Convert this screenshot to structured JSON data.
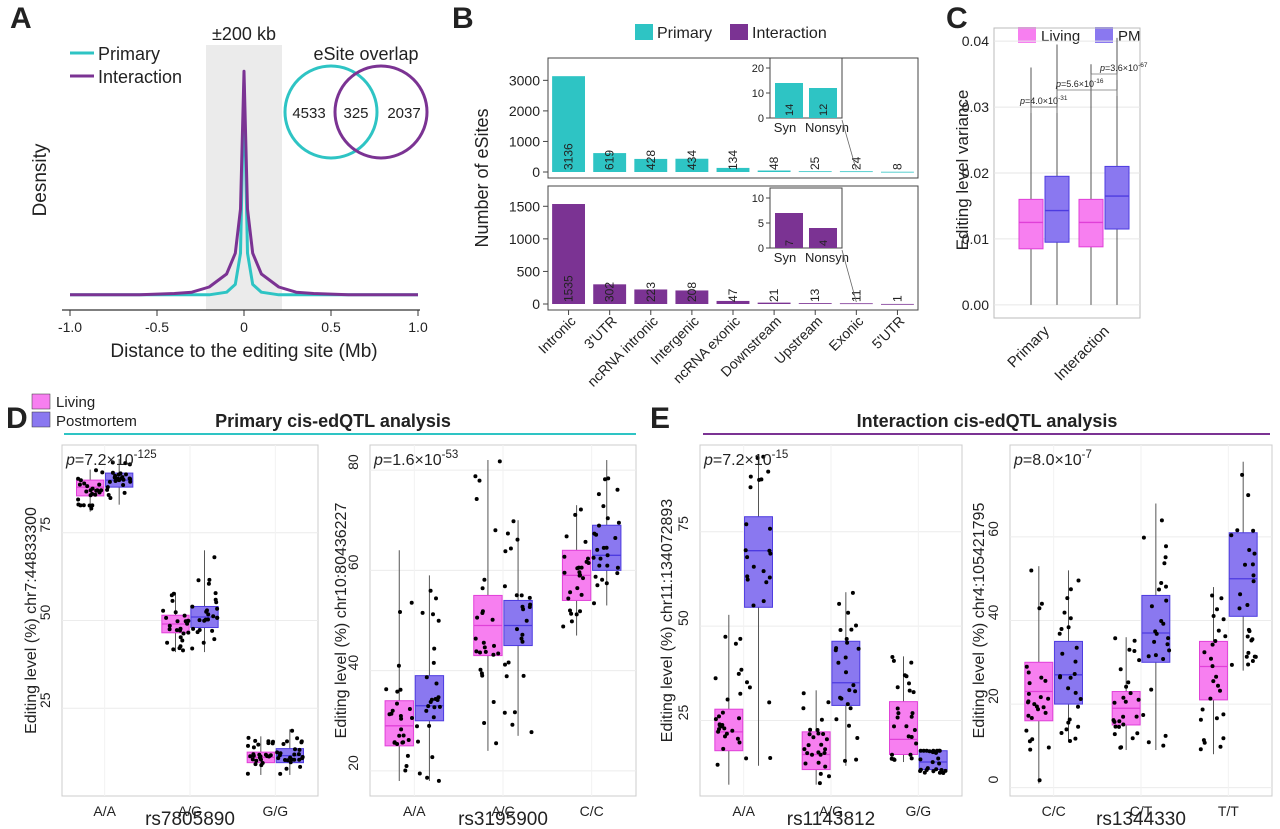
{
  "colors": {
    "primary": "#2ec4c4",
    "interaction": "#7b3393",
    "living": "#f77ff0",
    "postmortem": "#8a78f0",
    "living_dark": "#e040d8",
    "postmortem_dark": "#4d3be0",
    "window": "#ebebeb"
  },
  "panels": {
    "A": "A",
    "B": "B",
    "C": "C",
    "D": "D",
    "E": "E"
  },
  "panelA": {
    "legend": [
      "Primary",
      "Interaction"
    ],
    "window_label": "±200 kb",
    "overlap_title": "eSite overlap",
    "venn": {
      "left": "4533",
      "middle": "325",
      "right": "2037"
    }
  },
  "panelD": {
    "legend": [
      "Living",
      "Postmortem"
    ],
    "title": "Primary cis-edQTL analysis"
  },
  "panelE": {
    "title": "Interaction cis-edQTL analysis"
  },
  "chart_data": [
    {
      "panel": "A",
      "type": "line",
      "xlabel": "Distance to the editing site (Mb)",
      "ylabel": "Desnsity",
      "xlim": [
        -1.0,
        1.0
      ],
      "xticks": [
        "-1.0",
        "-0.5",
        "0",
        "0.5",
        "1.0"
      ],
      "grid": false,
      "legend": "top-left",
      "window": [
        -0.2,
        0.2
      ],
      "series": [
        {
          "name": "Primary",
          "x": [
            -1.0,
            -0.8,
            -0.6,
            -0.4,
            -0.3,
            -0.2,
            -0.1,
            -0.05,
            -0.02,
            0,
            0.02,
            0.05,
            0.1,
            0.2,
            0.3,
            0.4,
            0.6,
            0.8,
            1.0
          ],
          "y": [
            0.02,
            0.02,
            0.02,
            0.02,
            0.02,
            0.02,
            0.03,
            0.06,
            0.18,
            0.84,
            0.18,
            0.06,
            0.03,
            0.02,
            0.02,
            0.02,
            0.02,
            0.02,
            0.02
          ]
        },
        {
          "name": "Interaction",
          "x": [
            -1.0,
            -0.8,
            -0.6,
            -0.4,
            -0.3,
            -0.2,
            -0.1,
            -0.05,
            -0.02,
            0,
            0.02,
            0.05,
            0.1,
            0.2,
            0.3,
            0.4,
            0.6,
            0.8,
            1.0
          ],
          "y": [
            0.02,
            0.02,
            0.02,
            0.025,
            0.03,
            0.05,
            0.1,
            0.18,
            0.35,
            0.88,
            0.35,
            0.18,
            0.1,
            0.05,
            0.03,
            0.025,
            0.02,
            0.02,
            0.02
          ]
        }
      ]
    },
    {
      "panel": "B",
      "type": "bar",
      "ylabel": "Number of eSites",
      "legend": "top",
      "categories": [
        "Intronic",
        "3'UTR",
        "ncRNA intronic",
        "Intergenic",
        "ncRNA exonic",
        "Downstream",
        "Upstream",
        "Exonic",
        "5'UTR"
      ],
      "series": [
        {
          "name": "Primary",
          "values": [
            3136,
            619,
            428,
            434,
            134,
            48,
            25,
            24,
            8
          ],
          "ylim": [
            0,
            3600
          ],
          "yticks": [
            0,
            1000,
            2000,
            3000
          ],
          "inset": {
            "categories": [
              "Syn",
              "Nonsyn"
            ],
            "values": [
              14,
              12
            ],
            "ylim": [
              0,
              24
            ],
            "yticks": [
              0,
              10,
              20
            ]
          }
        },
        {
          "name": "Interaction",
          "values": [
            1535,
            302,
            223,
            208,
            47,
            21,
            13,
            11,
            1
          ],
          "ylim": [
            0,
            1750
          ],
          "yticks": [
            0,
            500,
            1000,
            1500
          ],
          "inset": {
            "categories": [
              "Syn",
              "Nonsyn"
            ],
            "values": [
              7,
              4
            ],
            "ylim": [
              0,
              12
            ],
            "yticks": [
              0,
              5,
              10
            ]
          }
        }
      ]
    },
    {
      "panel": "C",
      "type": "box",
      "ylabel": "Editing level variance",
      "legend": "top-left",
      "categories": [
        "Primary",
        "Interaction"
      ],
      "ylim": [
        -0.002,
        0.042
      ],
      "yticks": [
        "0.00",
        "0.01",
        "0.02",
        "0.03",
        "0.04"
      ],
      "series": [
        {
          "name": "Living",
          "boxes": [
            [
              0,
              0.0085,
              0.0125,
              0.016,
              0.036
            ],
            [
              0,
              0.0088,
              0.0125,
              0.016,
              0.0365
            ]
          ]
        },
        {
          "name": "PM",
          "boxes": [
            [
              0,
              0.0095,
              0.0143,
              0.0195,
              0.0395
            ],
            [
              0,
              0.0115,
              0.0165,
              0.021,
              0.0405
            ]
          ]
        }
      ],
      "pvalues": [
        {
          "base": "p=4.0×10",
          "exp": "-31"
        },
        {
          "base": "p=5.6×10",
          "exp": "-16"
        },
        {
          "base": "p=3.6×10",
          "exp": "-67"
        }
      ]
    },
    {
      "panel": "D1",
      "type": "box",
      "xlabel": "rs7805890",
      "ylabel": "Editing level (%) chr7:44833300",
      "categories": [
        "A/A",
        "A/G",
        "G/G"
      ],
      "ylim": [
        0,
        100
      ],
      "yticks": [
        "25",
        "50",
        "75"
      ],
      "p_base": "p=7.2×10",
      "p_exp": "-125",
      "boxes": [
        [
          [
            81,
            85.5,
            88,
            90,
            93
          ],
          [
            83,
            88,
            90,
            92,
            96
          ]
        ],
        [
          [
            41,
            46.5,
            49,
            51.5,
            58
          ],
          [
            41,
            48,
            51,
            54,
            70
          ]
        ],
        [
          [
            6,
            9.5,
            11,
            12.5,
            17
          ],
          [
            6,
            9.5,
            11.5,
            13.5,
            19
          ]
        ]
      ]
    },
    {
      "panel": "D2",
      "type": "box",
      "xlabel": "rs3195900",
      "ylabel": "Editing level (%) chr10:80436227",
      "categories": [
        "A/A",
        "A/C",
        "C/C"
      ],
      "ylim": [
        15,
        85
      ],
      "yticks": [
        "20",
        "40",
        "60",
        "80"
      ],
      "p_base": "p=1.6×10",
      "p_exp": "-53",
      "boxes": [
        [
          [
            18,
            25,
            29,
            34,
            64
          ],
          [
            18,
            30,
            33,
            39,
            59
          ]
        ],
        [
          [
            24,
            43,
            49,
            55,
            82
          ],
          [
            27,
            45,
            49,
            54,
            70
          ]
        ],
        [
          [
            47,
            54,
            59,
            64,
            73
          ],
          [
            53,
            60,
            63,
            69,
            82
          ]
        ]
      ]
    },
    {
      "panel": "E1",
      "type": "box",
      "xlabel": "rs1143812",
      "ylabel": "Editing level (%) chr11:134072893",
      "categories": [
        "A/A",
        "A/G",
        "G/G"
      ],
      "ylim": [
        5,
        98
      ],
      "yticks": [
        "25",
        "50",
        "75"
      ],
      "p_base": "p=7.2×10",
      "p_exp": "-15",
      "boxes": [
        [
          [
            8,
            17,
            22,
            28,
            53
          ],
          [
            13,
            55,
            70,
            79,
            95
          ]
        ],
        [
          [
            8,
            12,
            16,
            22,
            33
          ],
          [
            13,
            29,
            35,
            46,
            59
          ]
        ],
        [
          [
            14,
            16,
            20,
            30,
            42
          ],
          [
            11,
            12,
            14,
            17,
            17
          ]
        ]
      ]
    },
    {
      "panel": "E2",
      "type": "box",
      "xlabel": "rs1344330",
      "ylabel": "Editing level (%) chr4:105421795",
      "categories": [
        "C/C",
        "C/T",
        "T/T"
      ],
      "ylim": [
        -2,
        82
      ],
      "yticks": [
        "0",
        "20",
        "40",
        "60"
      ],
      "p_base": "p=8.0×10",
      "p_exp": "-7",
      "boxes": [
        [
          [
            1,
            16,
            23,
            30,
            53
          ],
          [
            11,
            20,
            27,
            35,
            52
          ]
        ],
        [
          [
            9,
            15,
            19,
            23,
            36
          ],
          [
            9,
            30,
            37,
            46,
            68
          ]
        ],
        [
          [
            8,
            21,
            29,
            35,
            48
          ],
          [
            28,
            41,
            50,
            61,
            78
          ]
        ]
      ]
    }
  ]
}
